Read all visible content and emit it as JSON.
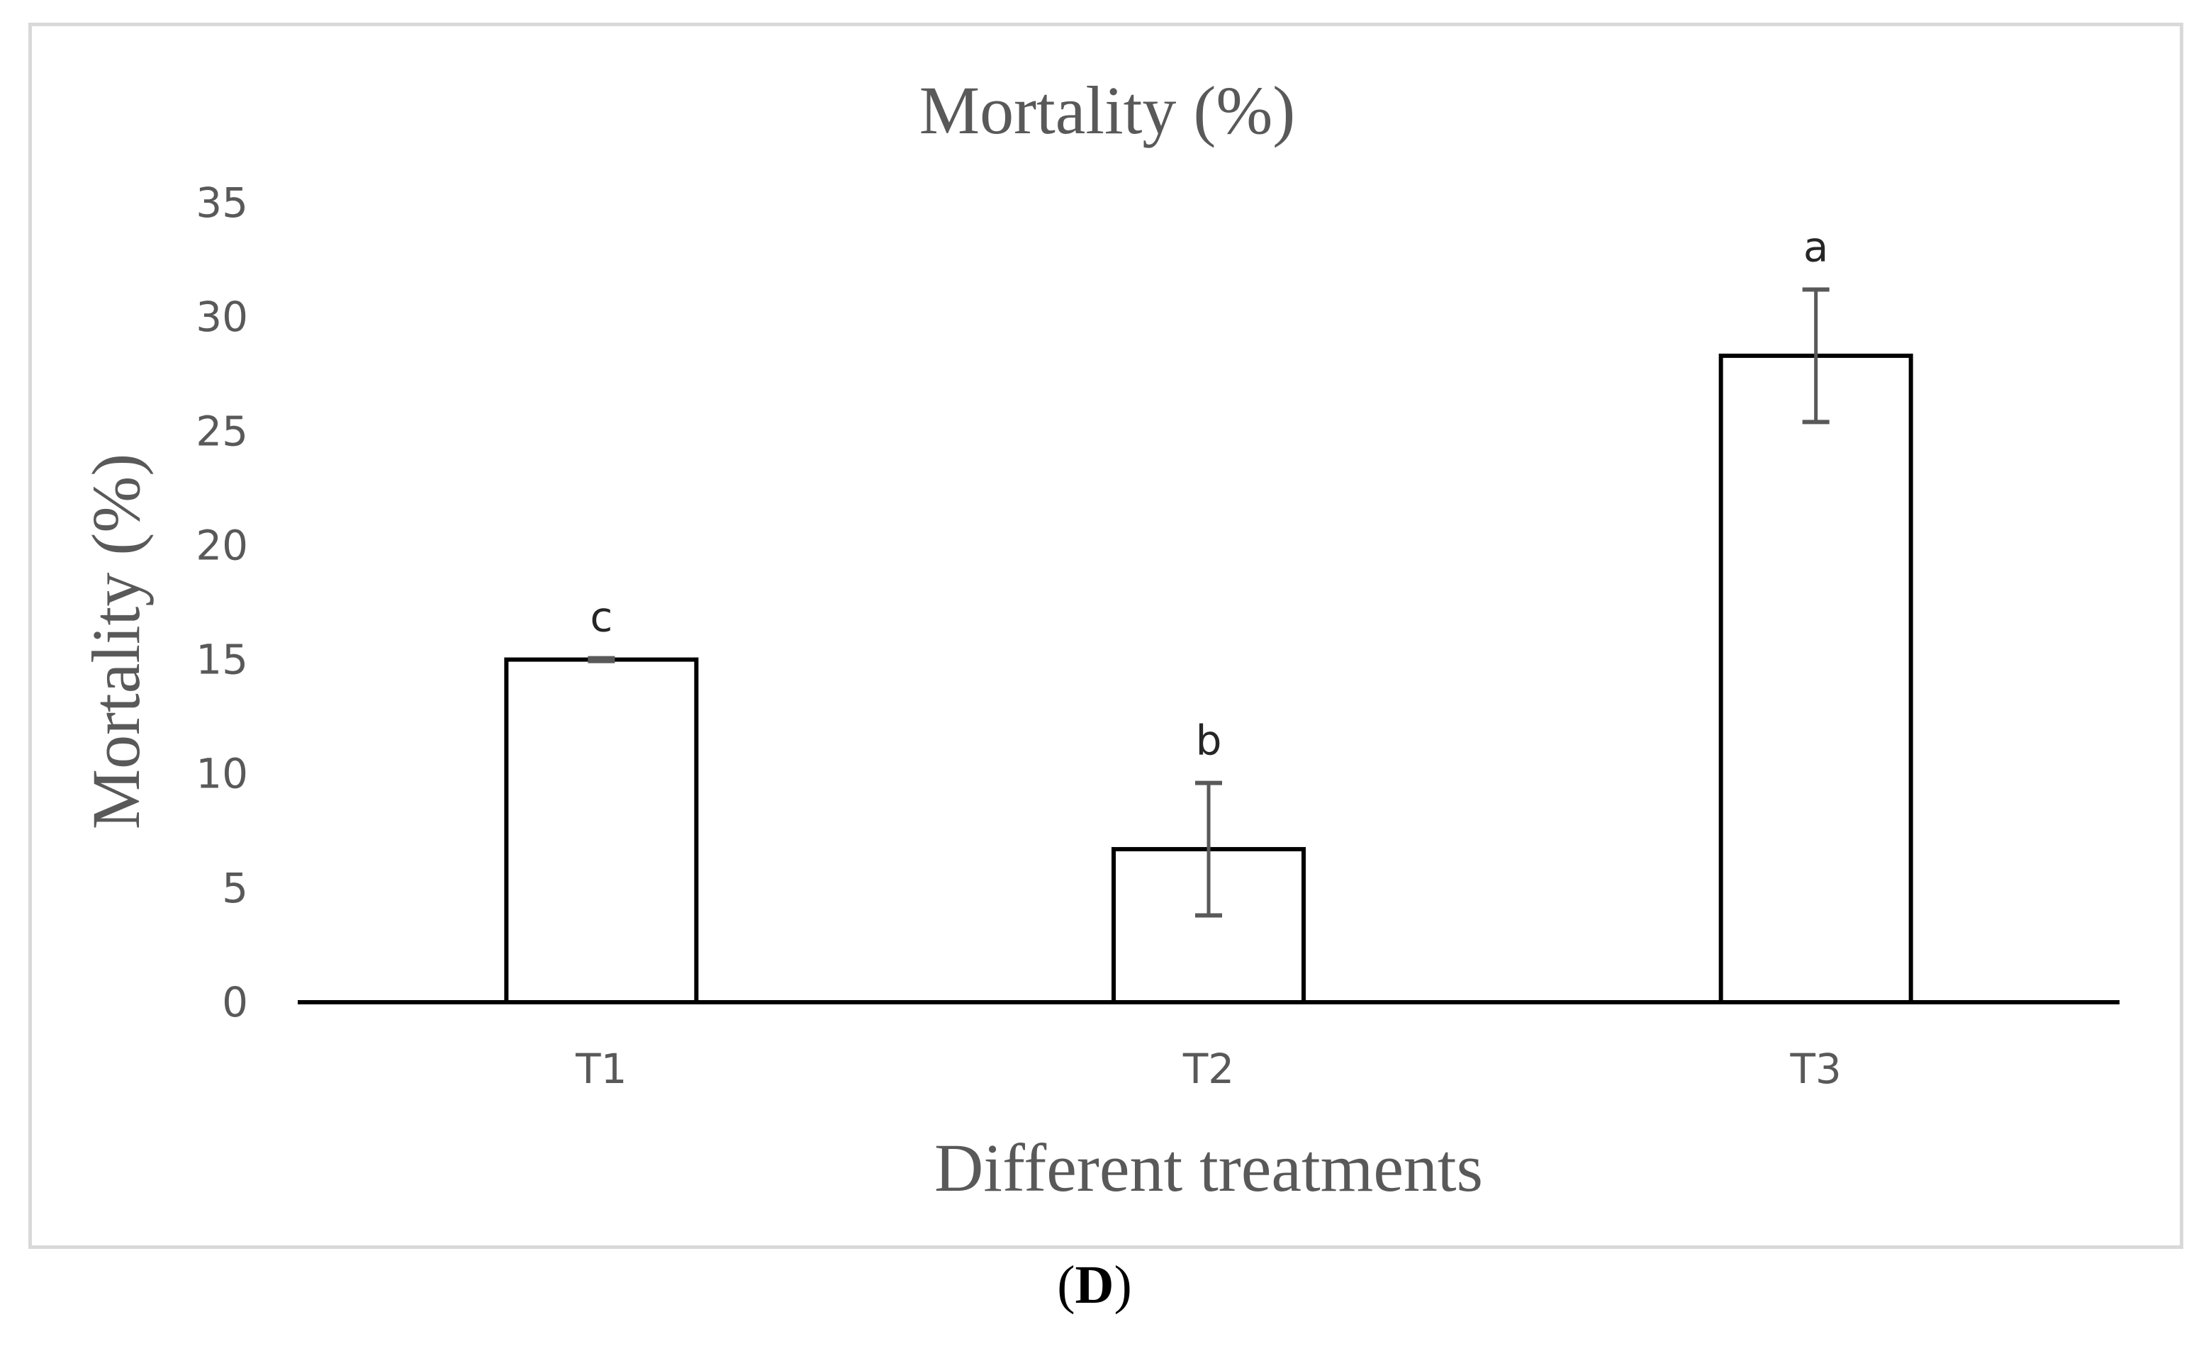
{
  "chart_data": {
    "type": "bar",
    "title": "Mortality (%)",
    "xlabel": "Different treatments",
    "ylabel": "Mortality (%)",
    "ylim": [
      0,
      35
    ],
    "yticks": [
      0,
      5,
      10,
      15,
      20,
      25,
      30,
      35
    ],
    "categories": [
      "T1",
      "T2",
      "T3"
    ],
    "values": [
      15.0,
      6.7,
      28.3
    ],
    "errors": [
      0.0,
      2.9,
      2.9
    ],
    "significance_letters": [
      "c",
      "b",
      "a"
    ],
    "grid": false,
    "legend": "none"
  },
  "panel_label": {
    "open": "(",
    "letter": "D",
    "close": ")"
  },
  "colors": {
    "bar_fill": "#ffffff",
    "bar_stroke": "#000000",
    "axis_text": "#595959",
    "title_text": "#595959",
    "error_bar": "#595959",
    "frame": "#d9d9d9"
  }
}
